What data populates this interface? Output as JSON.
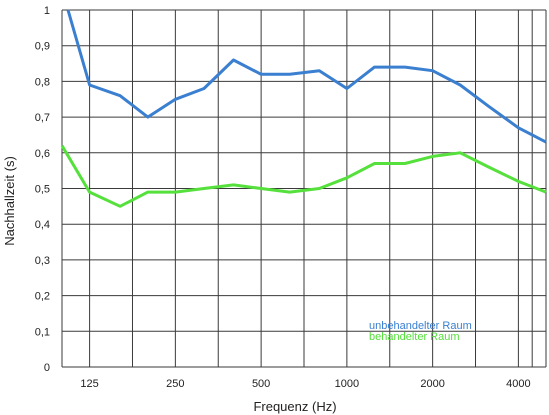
{
  "chart_data": {
    "type": "line",
    "xlabel": "Frequenz (Hz)",
    "ylabel": "Nachhallzeit (s)",
    "ylim": [
      0,
      1
    ],
    "yticks": [
      "0",
      "0,1",
      "0,2",
      "0,3",
      "0,4",
      "0,5",
      "0,6",
      "0,7",
      "0,8",
      "0,9",
      "1"
    ],
    "xlim": [
      100,
      5000
    ],
    "xscale": "log",
    "xticks": [
      {
        "value": 125,
        "label": "125"
      },
      {
        "value": 250,
        "label": "250"
      },
      {
        "value": 500,
        "label": "500"
      },
      {
        "value": 1000,
        "label": "1000"
      },
      {
        "value": 2000,
        "label": "2000"
      },
      {
        "value": 4000,
        "label": "4000"
      }
    ],
    "grid": true,
    "legend_position": "bottom-right",
    "series": [
      {
        "name": "unbehandelter Raum",
        "color": "#3a7fd0",
        "points": [
          [
            105,
            1.0
          ],
          [
            125,
            0.79
          ],
          [
            160,
            0.76
          ],
          [
            200,
            0.7
          ],
          [
            250,
            0.75
          ],
          [
            315,
            0.78
          ],
          [
            400,
            0.86
          ],
          [
            500,
            0.82
          ],
          [
            630,
            0.82
          ],
          [
            800,
            0.83
          ],
          [
            1000,
            0.78
          ],
          [
            1250,
            0.84
          ],
          [
            1600,
            0.84
          ],
          [
            2000,
            0.83
          ],
          [
            2500,
            0.79
          ],
          [
            3150,
            0.73
          ],
          [
            4000,
            0.67
          ],
          [
            5000,
            0.63
          ]
        ]
      },
      {
        "name": "behandelter Raum",
        "color": "#55e03c",
        "points": [
          [
            100,
            0.62
          ],
          [
            125,
            0.49
          ],
          [
            160,
            0.45
          ],
          [
            200,
            0.49
          ],
          [
            250,
            0.49
          ],
          [
            315,
            0.5
          ],
          [
            400,
            0.51
          ],
          [
            500,
            0.5
          ],
          [
            630,
            0.49
          ],
          [
            800,
            0.5
          ],
          [
            1000,
            0.53
          ],
          [
            1250,
            0.57
          ],
          [
            1600,
            0.57
          ],
          [
            2000,
            0.59
          ],
          [
            2500,
            0.6
          ],
          [
            3150,
            0.56
          ],
          [
            4000,
            0.52
          ],
          [
            5000,
            0.49
          ]
        ]
      }
    ]
  }
}
